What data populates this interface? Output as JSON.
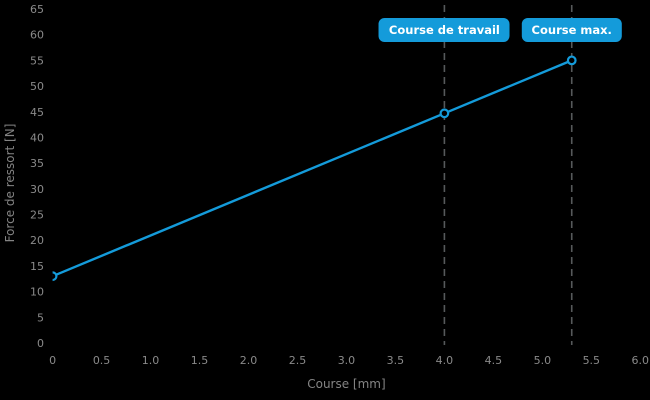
{
  "chart_data": {
    "type": "line",
    "title": "",
    "xlabel": "Course [mm]",
    "ylabel": "Force de ressort [N]",
    "xlim": [
      0,
      6.0
    ],
    "ylim": [
      0,
      65
    ],
    "x_ticks": [
      "0",
      "0.5",
      "1.0",
      "1.5",
      "2.0",
      "2.5",
      "3.0",
      "3.5",
      "4.0",
      "4.5",
      "5.0",
      "5.5",
      "6.0"
    ],
    "y_ticks": [
      "65",
      "60",
      "55",
      "50",
      "45",
      "40",
      "35",
      "30",
      "25",
      "20",
      "15",
      "10",
      "5",
      "0"
    ],
    "grid": false,
    "legend": "none",
    "series": [
      {
        "name": "force-de-ressort",
        "color": "#149bda",
        "points": [
          {
            "x": 0.0,
            "y": 13.0
          },
          {
            "x": 4.0,
            "y": 44.7
          },
          {
            "x": 5.3,
            "y": 55.0
          }
        ],
        "marker": "open-circle"
      }
    ],
    "annotations": [
      {
        "label": "Course de travail",
        "x": 4.0,
        "style": "dashed-vertical-line"
      },
      {
        "label": "Course max.",
        "x": 5.3,
        "style": "dashed-vertical-line"
      }
    ]
  },
  "colors": {
    "background": "#000000",
    "accent_blue": "#149bda",
    "tick_label": "#8a8a8a",
    "axis_label": "#848484",
    "dashed_line": "#56595b",
    "badge_text": "#ffffff"
  }
}
